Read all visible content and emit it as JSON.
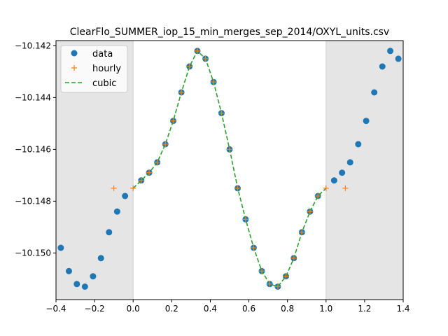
{
  "chart_data": {
    "type": "scatter",
    "title": "ClearFlo_SUMMER_iop_15_min_merges_sep_2014/OXYL_units.csv",
    "xlabel": "",
    "ylabel": "",
    "xlim": [
      -0.4,
      1.4
    ],
    "ylim": [
      -10.1518,
      -10.1418
    ],
    "xticks": [
      -0.4,
      -0.2,
      0.0,
      0.2,
      0.4,
      0.6,
      0.8,
      1.0,
      1.2,
      1.4
    ],
    "xtick_labels": [
      "−0.4",
      "−0.2",
      "0.0",
      "0.2",
      "0.4",
      "0.6",
      "0.8",
      "1.0",
      "1.2",
      "1.4"
    ],
    "yticks": [
      -10.142,
      -10.144,
      -10.146,
      -10.148,
      -10.15
    ],
    "ytick_labels": [
      "−10.142",
      "−10.144",
      "−10.146",
      "−10.148",
      "−10.150"
    ],
    "shaded_regions": [
      [
        -0.4,
        0.0
      ],
      [
        1.0,
        1.4
      ]
    ],
    "legend_placement": "top-left",
    "series": [
      {
        "name": "data",
        "style": "marker",
        "color": "#1f77b4",
        "x": [
          -0.375,
          -0.333,
          -0.292,
          -0.25,
          -0.208,
          -0.167,
          -0.125,
          -0.083,
          -0.042,
          0.042,
          0.083,
          0.125,
          0.167,
          0.208,
          0.25,
          0.292,
          0.333,
          0.375,
          0.417,
          0.458,
          0.5,
          0.542,
          0.583,
          0.625,
          0.667,
          0.708,
          0.75,
          0.792,
          0.833,
          0.875,
          0.917,
          0.958,
          1.042,
          1.083,
          1.125,
          1.167,
          1.208,
          1.25,
          1.292,
          1.333,
          1.375
        ],
        "y": [
          -10.1498,
          -10.1507,
          -10.1512,
          -10.1513,
          -10.1509,
          -10.1502,
          -10.1492,
          -10.1484,
          -10.1478,
          -10.1472,
          -10.1469,
          -10.1465,
          -10.1458,
          -10.1449,
          -10.1438,
          -10.1428,
          -10.1422,
          -10.1425,
          -10.1434,
          -10.1446,
          -10.146,
          -10.1475,
          -10.1487,
          -10.1498,
          -10.1507,
          -10.1512,
          -10.1513,
          -10.1509,
          -10.1502,
          -10.1492,
          -10.1484,
          -10.1478,
          -10.1472,
          -10.1469,
          -10.1465,
          -10.1458,
          -10.1449,
          -10.1438,
          -10.1428,
          -10.1422,
          -10.1425
        ]
      },
      {
        "name": "hourly",
        "style": "plus",
        "color": "#ff7f0e",
        "x": [
          -0.1,
          0.0,
          0.042,
          0.083,
          0.125,
          0.167,
          0.208,
          0.25,
          0.292,
          0.333,
          0.375,
          0.417,
          0.458,
          0.5,
          0.542,
          0.583,
          0.625,
          0.667,
          0.708,
          0.75,
          0.792,
          0.833,
          0.875,
          0.917,
          0.958,
          1.0,
          1.1
        ],
        "y": [
          -10.1475,
          -10.1475,
          -10.1472,
          -10.1469,
          -10.1465,
          -10.1458,
          -10.1449,
          -10.1438,
          -10.1428,
          -10.1422,
          -10.1425,
          -10.1434,
          -10.1446,
          -10.146,
          -10.1475,
          -10.1487,
          -10.1498,
          -10.1507,
          -10.1512,
          -10.1513,
          -10.1509,
          -10.1502,
          -10.1492,
          -10.1484,
          -10.1478,
          -10.1475,
          -10.1475
        ]
      },
      {
        "name": "cubic",
        "style": "dashed-line",
        "color": "#2ca02c",
        "x": [
          0.0,
          0.042,
          0.083,
          0.125,
          0.167,
          0.208,
          0.25,
          0.292,
          0.333,
          0.375,
          0.417,
          0.458,
          0.5,
          0.542,
          0.583,
          0.625,
          0.667,
          0.708,
          0.75,
          0.792,
          0.833,
          0.875,
          0.917,
          0.958,
          1.0
        ],
        "y": [
          -10.1475,
          -10.1472,
          -10.1469,
          -10.1465,
          -10.1458,
          -10.1449,
          -10.1438,
          -10.1428,
          -10.1422,
          -10.1425,
          -10.1434,
          -10.1446,
          -10.146,
          -10.1475,
          -10.1487,
          -10.1498,
          -10.1507,
          -10.1512,
          -10.1513,
          -10.1509,
          -10.1502,
          -10.1492,
          -10.1484,
          -10.1478,
          -10.1475
        ]
      }
    ]
  }
}
